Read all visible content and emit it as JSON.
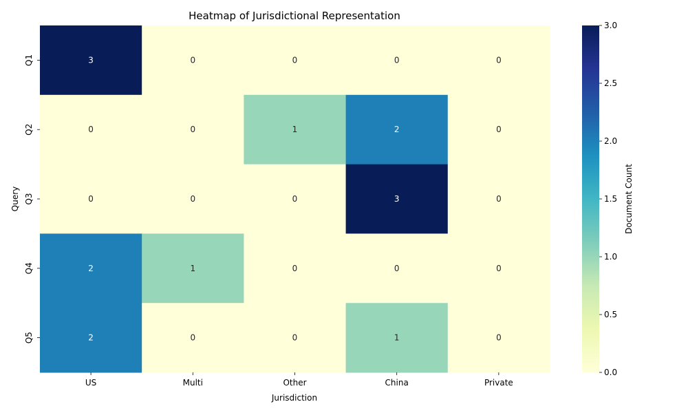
{
  "chart_data": {
    "type": "heatmap",
    "title": "Heatmap of Jurisdictional Representation",
    "xlabel": "Jurisdiction",
    "ylabel": "Query",
    "x_categories": [
      "US",
      "Multi",
      "Other",
      "China",
      "Private"
    ],
    "y_categories": [
      "Q1",
      "Q2",
      "Q3",
      "Q4",
      "Q5"
    ],
    "values": [
      [
        3,
        0,
        0,
        0,
        0
      ],
      [
        0,
        0,
        1,
        2,
        0
      ],
      [
        0,
        0,
        0,
        3,
        0
      ],
      [
        2,
        1,
        0,
        0,
        0
      ],
      [
        2,
        0,
        0,
        1,
        0
      ]
    ],
    "colormap": "YlGnBu",
    "colorbar": {
      "label": "Document Count",
      "range": [
        0,
        3
      ],
      "ticks": [
        "0.0",
        "0.5",
        "1.0",
        "1.5",
        "2.0",
        "2.5",
        "3.0"
      ],
      "colors": [
        "#ffffd9",
        "#edf8b1",
        "#c7e9b4",
        "#7fcdbb",
        "#41b6c4",
        "#1d91c0",
        "#225ea8",
        "#253494",
        "#081d58"
      ]
    }
  }
}
